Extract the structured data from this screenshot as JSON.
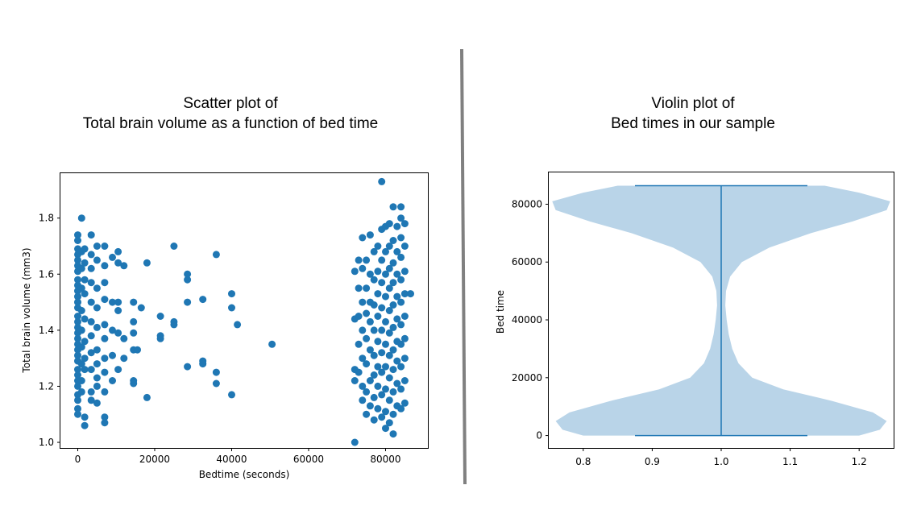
{
  "colors": {
    "scatter": "#1f77b4",
    "violin_body": "#b9d4e8",
    "violin_line": "#1f77b4",
    "divider": "#808080"
  },
  "left_title": {
    "line1": "Scatter plot of",
    "line2": "Total brain volume as a function of bed time"
  },
  "right_title": {
    "line1": "Violin plot of",
    "line2": "Bed times in our sample"
  },
  "chart_data": [
    {
      "type": "scatter",
      "title": "Scatter plot of Total brain volume as a function of bed time",
      "xlabel": "Bedtime (seconds)",
      "ylabel": "Total brain volume (mm3)",
      "xlim": [
        -4500,
        91000
      ],
      "ylim": [
        0.98,
        1.96
      ],
      "xticks": [
        0,
        20000,
        40000,
        60000,
        80000
      ],
      "yticks": [
        1.0,
        1.2,
        1.4,
        1.6,
        1.8
      ],
      "grid": false,
      "points": [
        [
          0,
          1.74
        ],
        [
          0,
          1.72
        ],
        [
          0,
          1.69
        ],
        [
          0,
          1.67
        ],
        [
          0,
          1.65
        ],
        [
          0,
          1.63
        ],
        [
          0,
          1.61
        ],
        [
          0,
          1.58
        ],
        [
          0,
          1.56
        ],
        [
          0,
          1.54
        ],
        [
          0,
          1.52
        ],
        [
          0,
          1.5
        ],
        [
          0,
          1.48
        ],
        [
          0,
          1.45
        ],
        [
          0,
          1.43
        ],
        [
          0,
          1.41
        ],
        [
          0,
          1.39
        ],
        [
          0,
          1.37
        ],
        [
          0,
          1.35
        ],
        [
          0,
          1.33
        ],
        [
          0,
          1.31
        ],
        [
          0,
          1.29
        ],
        [
          0,
          1.26
        ],
        [
          0,
          1.24
        ],
        [
          0,
          1.22
        ],
        [
          0,
          1.2
        ],
        [
          0,
          1.17
        ],
        [
          0,
          1.15
        ],
        [
          0,
          1.12
        ],
        [
          0,
          1.1
        ],
        [
          1000,
          1.8
        ],
        [
          1000,
          1.68
        ],
        [
          1000,
          1.62
        ],
        [
          1000,
          1.55
        ],
        [
          1000,
          1.47
        ],
        [
          1000,
          1.4
        ],
        [
          1000,
          1.34
        ],
        [
          1000,
          1.28
        ],
        [
          1000,
          1.22
        ],
        [
          1000,
          1.18
        ],
        [
          1800,
          1.69
        ],
        [
          1800,
          1.64
        ],
        [
          1800,
          1.58
        ],
        [
          1800,
          1.53
        ],
        [
          1800,
          1.44
        ],
        [
          1800,
          1.36
        ],
        [
          1800,
          1.3
        ],
        [
          1800,
          1.26
        ],
        [
          1800,
          1.09
        ],
        [
          1800,
          1.06
        ],
        [
          3500,
          1.74
        ],
        [
          3500,
          1.67
        ],
        [
          3500,
          1.62
        ],
        [
          3500,
          1.57
        ],
        [
          3500,
          1.5
        ],
        [
          3500,
          1.43
        ],
        [
          3500,
          1.38
        ],
        [
          3500,
          1.32
        ],
        [
          3500,
          1.26
        ],
        [
          3500,
          1.18
        ],
        [
          3500,
          1.15
        ],
        [
          5000,
          1.7
        ],
        [
          5000,
          1.65
        ],
        [
          5000,
          1.55
        ],
        [
          5000,
          1.48
        ],
        [
          5000,
          1.41
        ],
        [
          5000,
          1.33
        ],
        [
          5000,
          1.28
        ],
        [
          5000,
          1.23
        ],
        [
          5000,
          1.2
        ],
        [
          5000,
          1.14
        ],
        [
          7000,
          1.7
        ],
        [
          7000,
          1.63
        ],
        [
          7000,
          1.57
        ],
        [
          7000,
          1.51
        ],
        [
          7000,
          1.42
        ],
        [
          7000,
          1.37
        ],
        [
          7000,
          1.3
        ],
        [
          7000,
          1.25
        ],
        [
          7000,
          1.18
        ],
        [
          7000,
          1.09
        ],
        [
          7000,
          1.07
        ],
        [
          9000,
          1.66
        ],
        [
          9000,
          1.5
        ],
        [
          9000,
          1.4
        ],
        [
          9000,
          1.31
        ],
        [
          9000,
          1.22
        ],
        [
          10500,
          1.68
        ],
        [
          10500,
          1.64
        ],
        [
          10500,
          1.5
        ],
        [
          10500,
          1.47
        ],
        [
          10500,
          1.39
        ],
        [
          10500,
          1.26
        ],
        [
          12000,
          1.63
        ],
        [
          12000,
          1.37
        ],
        [
          12000,
          1.3
        ],
        [
          14500,
          1.5
        ],
        [
          14500,
          1.43
        ],
        [
          14500,
          1.39
        ],
        [
          14500,
          1.33
        ],
        [
          14500,
          1.22
        ],
        [
          14500,
          1.21
        ],
        [
          15500,
          1.33
        ],
        [
          16500,
          1.48
        ],
        [
          18000,
          1.64
        ],
        [
          18000,
          1.16
        ],
        [
          21500,
          1.45
        ],
        [
          21500,
          1.38
        ],
        [
          21500,
          1.37
        ],
        [
          25000,
          1.7
        ],
        [
          25000,
          1.43
        ],
        [
          25000,
          1.42
        ],
        [
          28500,
          1.6
        ],
        [
          28500,
          1.58
        ],
        [
          28500,
          1.5
        ],
        [
          28500,
          1.27
        ],
        [
          32500,
          1.51
        ],
        [
          32500,
          1.29
        ],
        [
          32500,
          1.28
        ],
        [
          36000,
          1.67
        ],
        [
          36000,
          1.25
        ],
        [
          36000,
          1.21
        ],
        [
          40000,
          1.53
        ],
        [
          40000,
          1.48
        ],
        [
          40000,
          1.17
        ],
        [
          41500,
          1.42
        ],
        [
          50500,
          1.35
        ],
        [
          72000,
          1.61
        ],
        [
          72000,
          1.44
        ],
        [
          72000,
          1.26
        ],
        [
          72000,
          1.22
        ],
        [
          72000,
          1.0
        ],
        [
          73000,
          1.65
        ],
        [
          73000,
          1.55
        ],
        [
          73000,
          1.45
        ],
        [
          73000,
          1.35
        ],
        [
          73000,
          1.25
        ],
        [
          74000,
          1.73
        ],
        [
          74000,
          1.62
        ],
        [
          74000,
          1.5
        ],
        [
          74000,
          1.4
        ],
        [
          74000,
          1.3
        ],
        [
          74000,
          1.2
        ],
        [
          74000,
          1.15
        ],
        [
          75000,
          1.65
        ],
        [
          75000,
          1.55
        ],
        [
          75000,
          1.46
        ],
        [
          75000,
          1.37
        ],
        [
          75000,
          1.28
        ],
        [
          75000,
          1.18
        ],
        [
          75000,
          1.1
        ],
        [
          76000,
          1.74
        ],
        [
          76000,
          1.6
        ],
        [
          76000,
          1.5
        ],
        [
          76000,
          1.43
        ],
        [
          76000,
          1.33
        ],
        [
          76000,
          1.22
        ],
        [
          76000,
          1.13
        ],
        [
          77000,
          1.68
        ],
        [
          77000,
          1.58
        ],
        [
          77000,
          1.49
        ],
        [
          77000,
          1.4
        ],
        [
          77000,
          1.31
        ],
        [
          77000,
          1.24
        ],
        [
          77000,
          1.16
        ],
        [
          77000,
          1.08
        ],
        [
          78000,
          1.7
        ],
        [
          78000,
          1.61
        ],
        [
          78000,
          1.53
        ],
        [
          78000,
          1.45
        ],
        [
          78000,
          1.36
        ],
        [
          78000,
          1.27
        ],
        [
          78000,
          1.2
        ],
        [
          78000,
          1.12
        ],
        [
          79000,
          1.93
        ],
        [
          79000,
          1.76
        ],
        [
          79000,
          1.65
        ],
        [
          79000,
          1.57
        ],
        [
          79000,
          1.48
        ],
        [
          79000,
          1.4
        ],
        [
          79000,
          1.32
        ],
        [
          79000,
          1.25
        ],
        [
          79000,
          1.17
        ],
        [
          79000,
          1.09
        ],
        [
          80000,
          1.77
        ],
        [
          80000,
          1.68
        ],
        [
          80000,
          1.6
        ],
        [
          80000,
          1.52
        ],
        [
          80000,
          1.43
        ],
        [
          80000,
          1.35
        ],
        [
          80000,
          1.27
        ],
        [
          80000,
          1.19
        ],
        [
          80000,
          1.11
        ],
        [
          80000,
          1.05
        ],
        [
          81000,
          1.78
        ],
        [
          81000,
          1.7
        ],
        [
          81000,
          1.62
        ],
        [
          81000,
          1.55
        ],
        [
          81000,
          1.47
        ],
        [
          81000,
          1.39
        ],
        [
          81000,
          1.31
        ],
        [
          81000,
          1.23
        ],
        [
          81000,
          1.15
        ],
        [
          81000,
          1.07
        ],
        [
          82000,
          1.84
        ],
        [
          82000,
          1.72
        ],
        [
          82000,
          1.64
        ],
        [
          82000,
          1.57
        ],
        [
          82000,
          1.49
        ],
        [
          82000,
          1.41
        ],
        [
          82000,
          1.33
        ],
        [
          82000,
          1.26
        ],
        [
          82000,
          1.18
        ],
        [
          82000,
          1.1
        ],
        [
          82000,
          1.03
        ],
        [
          83000,
          1.77
        ],
        [
          83000,
          1.68
        ],
        [
          83000,
          1.6
        ],
        [
          83000,
          1.52
        ],
        [
          83000,
          1.44
        ],
        [
          83000,
          1.36
        ],
        [
          83000,
          1.29
        ],
        [
          83000,
          1.21
        ],
        [
          83000,
          1.13
        ],
        [
          84000,
          1.84
        ],
        [
          84000,
          1.8
        ],
        [
          84000,
          1.73
        ],
        [
          84000,
          1.66
        ],
        [
          84000,
          1.58
        ],
        [
          84000,
          1.5
        ],
        [
          84000,
          1.42
        ],
        [
          84000,
          1.35
        ],
        [
          84000,
          1.27
        ],
        [
          84000,
          1.19
        ],
        [
          84000,
          1.12
        ],
        [
          85000,
          1.78
        ],
        [
          85000,
          1.7
        ],
        [
          85000,
          1.61
        ],
        [
          85000,
          1.53
        ],
        [
          85000,
          1.45
        ],
        [
          85000,
          1.37
        ],
        [
          85000,
          1.3
        ],
        [
          85000,
          1.22
        ],
        [
          85000,
          1.14
        ],
        [
          86500,
          1.53
        ]
      ]
    },
    {
      "type": "violin",
      "title": "Violin plot of Bed times in our sample",
      "xlabel": "",
      "ylabel": "Bed time",
      "xlim": [
        0.75,
        1.25
      ],
      "ylim": [
        -4300,
        91000
      ],
      "xticks": [
        0.8,
        0.9,
        1.0,
        1.1,
        1.2
      ],
      "yticks": [
        0,
        20000,
        40000,
        60000,
        80000
      ],
      "position": 1.0,
      "min": 0,
      "max": 86400,
      "density_profile": [
        [
          0,
          0.2
        ],
        [
          2000,
          0.23
        ],
        [
          5000,
          0.24
        ],
        [
          8000,
          0.22
        ],
        [
          12000,
          0.16
        ],
        [
          16000,
          0.09
        ],
        [
          20000,
          0.045
        ],
        [
          25000,
          0.025
        ],
        [
          30000,
          0.016
        ],
        [
          35000,
          0.011
        ],
        [
          40000,
          0.008
        ],
        [
          45000,
          0.006
        ],
        [
          50000,
          0.007
        ],
        [
          55000,
          0.013
        ],
        [
          60000,
          0.03
        ],
        [
          65000,
          0.07
        ],
        [
          70000,
          0.13
        ],
        [
          74000,
          0.19
        ],
        [
          78000,
          0.24
        ],
        [
          81000,
          0.245
        ],
        [
          84000,
          0.2
        ],
        [
          86400,
          0.15
        ]
      ]
    }
  ]
}
